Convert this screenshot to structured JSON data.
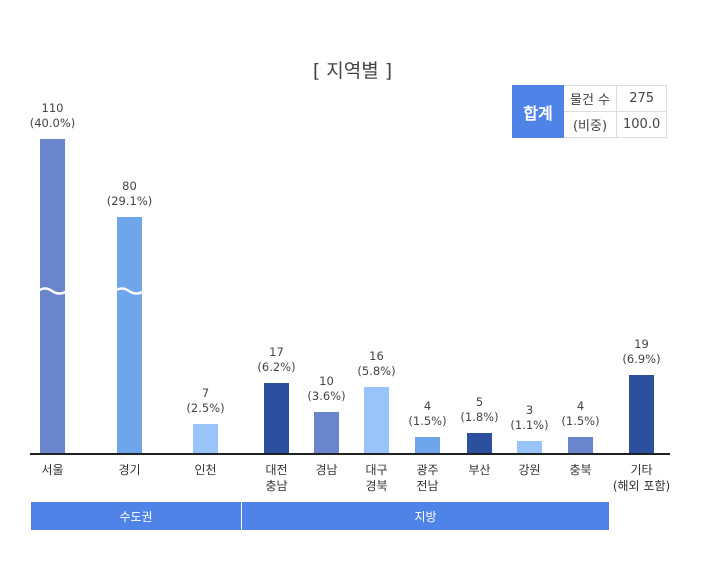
{
  "chart_data": {
    "type": "bar",
    "title": "[ 지역별 ]",
    "categories": [
      "서울",
      "경기",
      "인천",
      "대전\n충남",
      "경남",
      "대구\n경북",
      "광주\n전남",
      "부산",
      "강원",
      "충북",
      "기타\n(해외 포함)"
    ],
    "values": [
      110,
      80,
      7,
      17,
      10,
      16,
      4,
      5,
      3,
      4,
      19
    ],
    "percent_labels": [
      "(40.0%)",
      "(29.1%)",
      "(2.5%)",
      "(6.2%)",
      "(3.6%)",
      "(5.8%)",
      "(1.5%)",
      "(1.8%)",
      "(1.1%)",
      "(1.5%)",
      "(6.9%)"
    ],
    "colors": [
      "#6a85cc",
      "#6fa5ea",
      "#99c4fa",
      "#2c4f9e",
      "#6a85cc",
      "#99c4fa",
      "#6fa5ea",
      "#2c4f9e",
      "#99c4fa",
      "#6a85cc",
      "#2c4f9e"
    ],
    "axis_break": true,
    "broken_bars": [
      "서울",
      "경기"
    ],
    "groups": [
      {
        "label": "수도권",
        "categories": [
          "서울",
          "경기",
          "인천"
        ]
      },
      {
        "label": "지방",
        "categories": [
          "대전\n충남",
          "경남",
          "대구\n경북",
          "광주\n전남",
          "부산",
          "강원",
          "충북"
        ]
      }
    ]
  },
  "summary": {
    "header": "합계",
    "rows": [
      {
        "label": "물건 수",
        "value": "275"
      },
      {
        "label": "(비중)",
        "value": "100.0"
      }
    ]
  },
  "accent": "#4f83e8"
}
